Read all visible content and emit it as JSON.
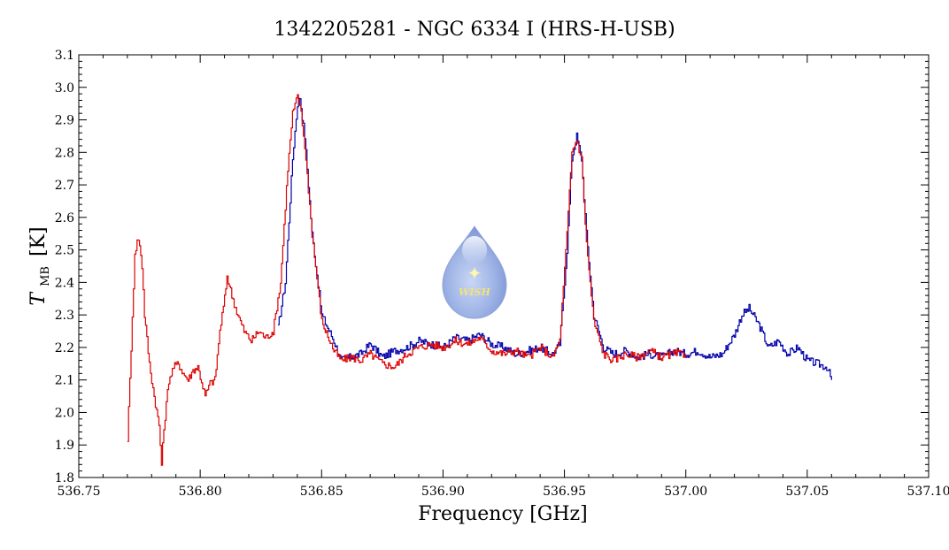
{
  "chart_data": {
    "type": "line",
    "title": "1342205281 - NGC 6334 I (HRS-H-USB)",
    "xlabel": "Frequency [GHz]",
    "ylabel": {
      "main": "T",
      "sub": "MB",
      "unit": "[K]"
    },
    "xlim": [
      536.75,
      537.1
    ],
    "ylim": [
      1.8,
      3.1
    ],
    "x_ticks": [
      536.75,
      536.8,
      536.85,
      536.9,
      536.95,
      537.0,
      537.05,
      537.1
    ],
    "x_tick_labels": [
      "536.75",
      "536.80",
      "536.85",
      "536.90",
      "536.95",
      "537.00",
      "537.05",
      "537.10"
    ],
    "y_ticks": [
      1.8,
      1.9,
      2.0,
      2.1,
      2.2,
      2.3,
      2.4,
      2.5,
      2.6,
      2.7,
      2.8,
      2.9,
      3.0,
      3.1
    ],
    "y_tick_labels": [
      "1.8",
      "1.9",
      "2.0",
      "2.1",
      "2.2",
      "2.3",
      "2.4",
      "2.5",
      "2.6",
      "2.7",
      "2.8",
      "2.9",
      "3.0",
      "3.1"
    ],
    "grid": false,
    "legend": "none",
    "logo_text": "WISH",
    "series": [
      {
        "color": "#0000aa",
        "x": [
          536.832,
          536.835,
          536.838,
          536.84,
          536.841,
          536.843,
          536.846,
          536.85,
          536.855,
          536.858,
          536.862,
          536.866,
          536.87,
          536.875,
          536.88,
          536.885,
          536.89,
          536.895,
          536.9,
          536.905,
          536.91,
          536.915,
          536.92,
          536.925,
          536.93,
          536.935,
          536.94,
          536.945,
          536.948,
          536.951,
          536.953,
          536.955,
          536.957,
          536.959,
          536.962,
          536.966,
          536.97,
          536.975,
          536.98,
          536.985,
          536.99,
          536.995,
          537.0,
          537.005,
          537.01,
          537.015,
          537.02,
          537.023,
          537.026,
          537.03,
          537.034,
          537.038,
          537.042,
          537.046,
          537.05,
          537.054,
          537.058,
          537.06
        ],
        "values": [
          2.26,
          2.4,
          2.78,
          2.95,
          2.97,
          2.85,
          2.55,
          2.3,
          2.22,
          2.16,
          2.17,
          2.18,
          2.21,
          2.17,
          2.19,
          2.2,
          2.22,
          2.21,
          2.2,
          2.23,
          2.22,
          2.24,
          2.21,
          2.2,
          2.18,
          2.19,
          2.2,
          2.18,
          2.21,
          2.5,
          2.78,
          2.85,
          2.78,
          2.55,
          2.3,
          2.2,
          2.18,
          2.19,
          2.17,
          2.18,
          2.17,
          2.19,
          2.18,
          2.19,
          2.17,
          2.18,
          2.24,
          2.3,
          2.32,
          2.27,
          2.2,
          2.22,
          2.18,
          2.2,
          2.16,
          2.15,
          2.14,
          2.1
        ]
      },
      {
        "color": "#dd0000",
        "x": [
          536.77,
          536.771,
          536.772,
          536.773,
          536.774,
          536.775,
          536.776,
          536.777,
          536.779,
          536.781,
          536.783,
          536.784,
          536.785,
          536.787,
          536.789,
          536.791,
          536.793,
          536.795,
          536.797,
          536.799,
          536.801,
          536.802,
          536.804,
          536.806,
          536.808,
          536.81,
          536.811,
          536.813,
          536.815,
          536.818,
          536.821,
          536.824,
          536.827,
          536.83,
          536.833,
          536.836,
          536.838,
          536.84,
          536.841,
          536.843,
          536.846,
          536.85,
          536.855,
          536.858,
          536.862,
          536.866,
          536.87,
          536.875,
          536.88,
          536.885,
          536.89,
          536.895,
          536.9,
          536.905,
          536.91,
          536.915,
          536.92,
          536.925,
          536.93,
          536.935,
          536.94,
          536.945,
          536.948,
          536.951,
          536.953,
          536.955,
          536.957,
          536.959,
          536.962,
          536.966,
          536.97,
          536.975,
          536.98,
          536.985,
          536.99,
          536.995,
          537.0
        ],
        "values": [
          1.92,
          2.1,
          2.3,
          2.48,
          2.53,
          2.52,
          2.45,
          2.3,
          2.15,
          2.05,
          1.96,
          1.84,
          1.95,
          2.1,
          2.14,
          2.15,
          2.12,
          2.1,
          2.13,
          2.14,
          2.08,
          2.05,
          2.09,
          2.1,
          2.25,
          2.35,
          2.42,
          2.36,
          2.31,
          2.25,
          2.22,
          2.25,
          2.23,
          2.25,
          2.4,
          2.75,
          2.92,
          2.97,
          2.95,
          2.82,
          2.55,
          2.28,
          2.19,
          2.16,
          2.17,
          2.16,
          2.18,
          2.15,
          2.14,
          2.18,
          2.2,
          2.21,
          2.2,
          2.22,
          2.21,
          2.23,
          2.19,
          2.18,
          2.19,
          2.17,
          2.2,
          2.17,
          2.22,
          2.55,
          2.8,
          2.84,
          2.78,
          2.52,
          2.28,
          2.18,
          2.16,
          2.18,
          2.17,
          2.19,
          2.17,
          2.18,
          2.18
        ]
      }
    ]
  }
}
